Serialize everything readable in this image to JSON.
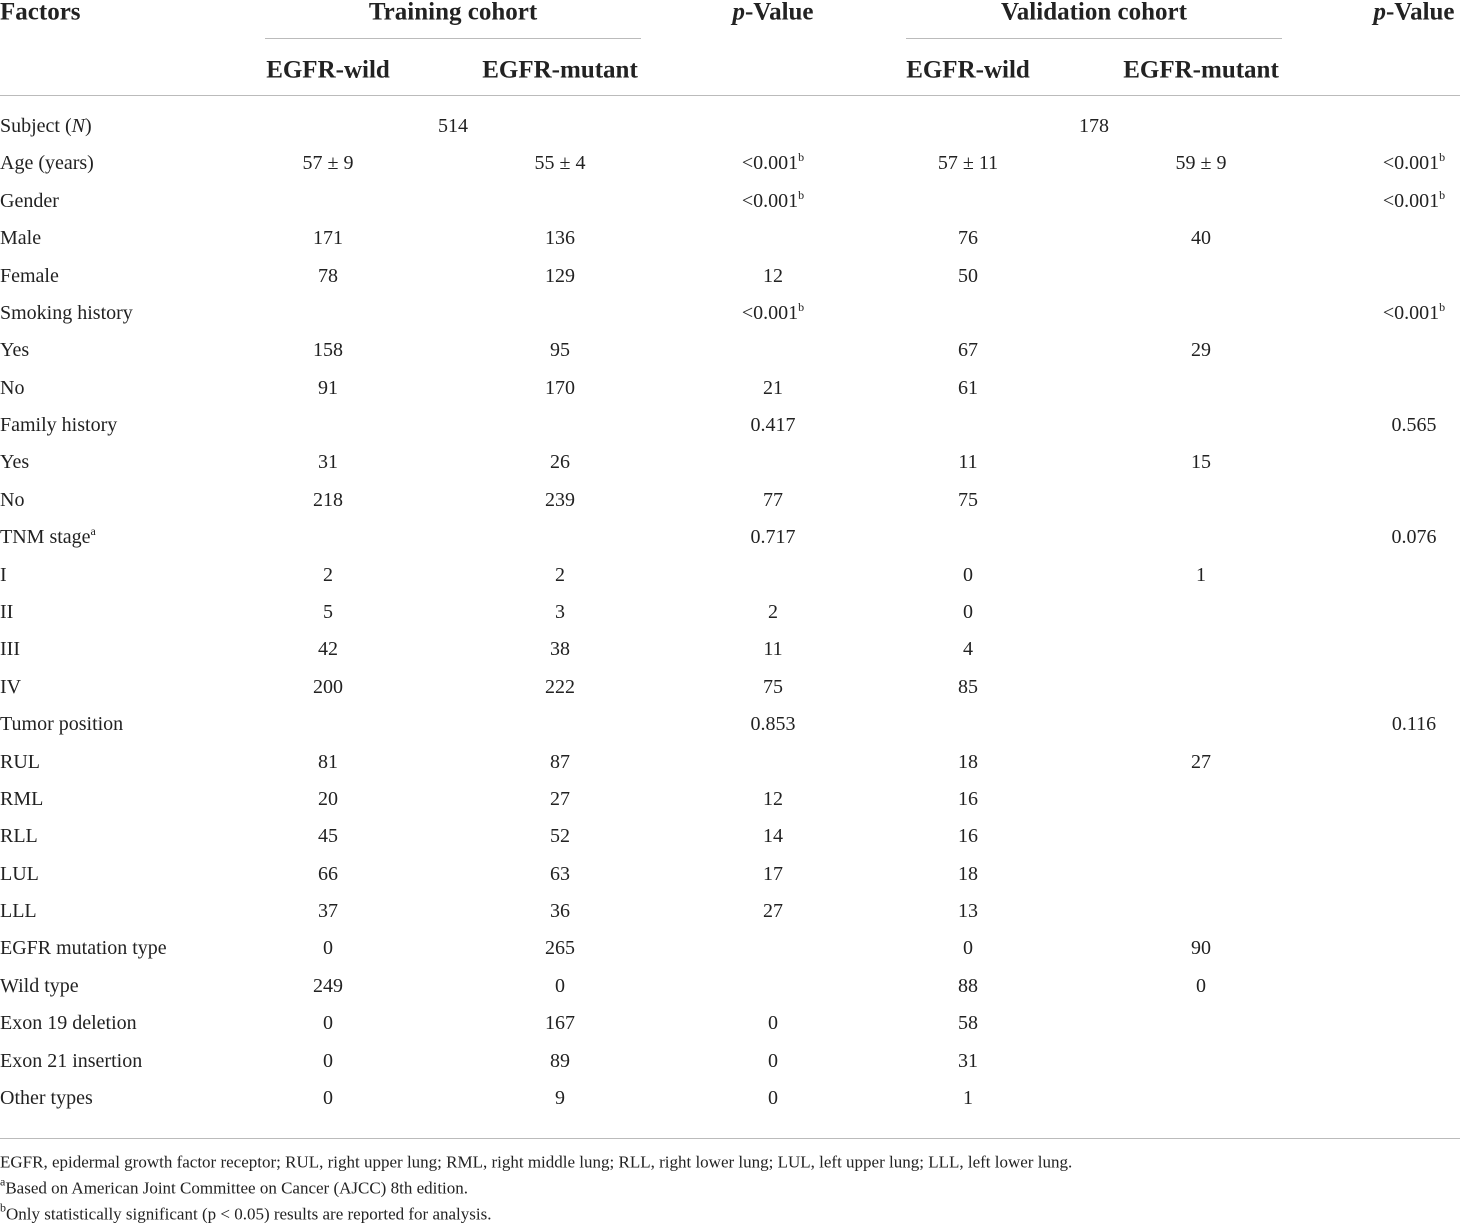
{
  "header": {
    "factors": "Factors",
    "training": "Training cohort",
    "validation": "Validation cohort",
    "pvalue": {
      "italic": "p",
      "text": "-Value"
    },
    "wild": "EGFR-wild",
    "mutant": "EGFR-mutant"
  },
  "table": {
    "rows": [
      {
        "label": {
          "text": "Subject (",
          "italic": "N",
          "tail": ")"
        },
        "training": "514",
        "validation": "178"
      },
      {
        "label": "Age (years)",
        "cells": [
          "57 ± 9",
          "55 ± 4",
          {
            "text": "<0.001",
            "sup": "b"
          },
          "57 ± 11",
          "59 ± 9",
          {
            "text": "<0.001",
            "sup": "b"
          }
        ]
      },
      {
        "label": "Gender",
        "cells": [
          null,
          null,
          {
            "text": "<0.001",
            "sup": "b"
          },
          null,
          null,
          {
            "text": "<0.001",
            "sup": "b"
          }
        ]
      },
      {
        "label": "Male",
        "cells": [
          "171",
          "136",
          null,
          "76",
          "40",
          null
        ]
      },
      {
        "label": "Female",
        "cells": [
          "78",
          "129",
          "12",
          "50",
          null,
          null
        ]
      },
      {
        "label": "Smoking history",
        "cells": [
          null,
          null,
          {
            "text": "<0.001",
            "sup": "b"
          },
          null,
          null,
          {
            "text": "<0.001",
            "sup": "b"
          }
        ]
      },
      {
        "label": "Yes",
        "cells": [
          "158",
          "95",
          null,
          "67",
          "29",
          null
        ]
      },
      {
        "label": "No",
        "cells": [
          "91",
          "170",
          "21",
          "61",
          null,
          null
        ]
      },
      {
        "label": "Family history",
        "cells": [
          null,
          null,
          "0.417",
          null,
          null,
          "0.565"
        ]
      },
      {
        "label": "Yes",
        "cells": [
          "31",
          "26",
          null,
          "11",
          "15",
          null
        ]
      },
      {
        "label": "No",
        "cells": [
          "218",
          "239",
          "77",
          "75",
          null,
          null
        ]
      },
      {
        "label": {
          "text": "TNM stage",
          "sup": "a"
        },
        "cells": [
          null,
          null,
          "0.717",
          null,
          null,
          "0.076"
        ]
      },
      {
        "label": "I",
        "cells": [
          "2",
          "2",
          null,
          "0",
          "1",
          null
        ]
      },
      {
        "label": "II",
        "cells": [
          "5",
          "3",
          "2",
          "0",
          null,
          null
        ]
      },
      {
        "label": "III",
        "cells": [
          "42",
          "38",
          "11",
          "4",
          null,
          null
        ]
      },
      {
        "label": "IV",
        "cells": [
          "200",
          "222",
          "75",
          "85",
          null,
          null
        ]
      },
      {
        "label": "Tumor position",
        "cells": [
          null,
          null,
          "0.853",
          null,
          null,
          "0.116"
        ]
      },
      {
        "label": "RUL",
        "cells": [
          "81",
          "87",
          null,
          "18",
          "27",
          null
        ]
      },
      {
        "label": "RML",
        "cells": [
          "20",
          "27",
          "12",
          "16",
          null,
          null
        ]
      },
      {
        "label": "RLL",
        "cells": [
          "45",
          "52",
          "14",
          "16",
          null,
          null
        ]
      },
      {
        "label": "LUL",
        "cells": [
          "66",
          "63",
          "17",
          "18",
          null,
          null
        ]
      },
      {
        "label": "LLL",
        "cells": [
          "37",
          "36",
          "27",
          "13",
          null,
          null
        ]
      },
      {
        "label": "EGFR mutation type",
        "cells": [
          "0",
          "265",
          null,
          "0",
          "90",
          null
        ]
      },
      {
        "label": "Wild type",
        "cells": [
          "249",
          "0",
          null,
          "88",
          "0",
          null
        ]
      },
      {
        "label": "Exon 19 deletion",
        "cells": [
          "0",
          "167",
          "0",
          "58",
          null,
          null
        ]
      },
      {
        "label": "Exon 21 insertion",
        "cells": [
          "0",
          "89",
          "0",
          "31",
          null,
          null
        ]
      },
      {
        "label": "Other types",
        "cells": [
          "0",
          "9",
          "0",
          "1",
          null,
          null
        ]
      }
    ]
  },
  "footnotes": [
    {
      "text": "EGFR, epidermal growth factor receptor; RUL, right upper lung; RML, right middle lung; RLL, right lower lung; LUL, left upper lung; LLL, left lower lung."
    },
    {
      "sup": "a",
      "text": "Based on American Joint Committee on Cancer (AJCC) 8th edition."
    },
    {
      "sup": "b",
      "text": "Only statistically significant (p < 0.05) results are reported for analysis."
    }
  ]
}
